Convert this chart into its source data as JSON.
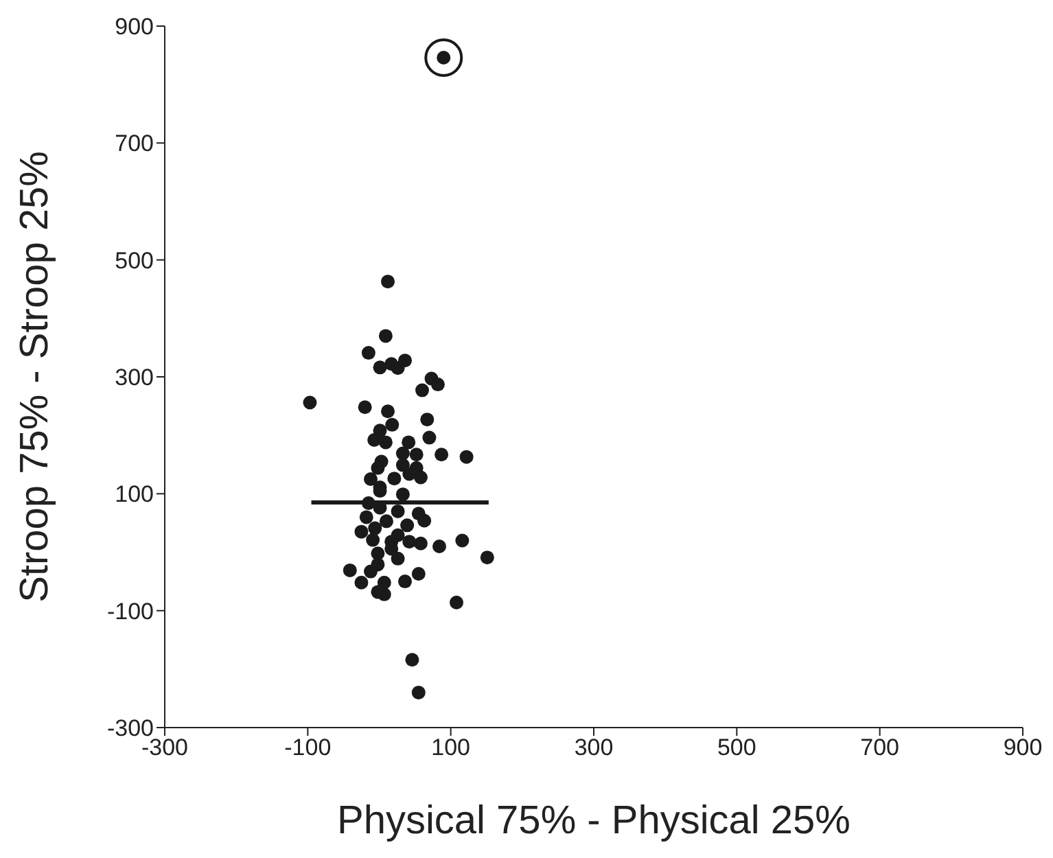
{
  "chart_data": {
    "type": "scatter",
    "xlabel": "Physical 75% - Physical 25%",
    "ylabel": "Stroop 75%  - Stroop 25%",
    "xlim": [
      -300,
      900
    ],
    "xticks": [
      -300,
      -100,
      100,
      300,
      500,
      700,
      900
    ],
    "ylim": [
      -300,
      900
    ],
    "yticks": [
      -300,
      -100,
      100,
      300,
      500,
      700,
      900
    ],
    "marker": "circle",
    "series": [
      {
        "color": "#1a1a1a",
        "x": [
          90,
          12,
          9,
          -15,
          1,
          17,
          26,
          36,
          73,
          82,
          60,
          -97,
          -20,
          12,
          67,
          18,
          1,
          -7,
          9,
          70,
          41,
          33,
          52,
          87,
          122,
          3,
          -2,
          33,
          52,
          -12,
          21,
          42,
          58,
          1,
          1,
          33,
          -15,
          1,
          26,
          -18,
          10,
          55,
          63,
          39,
          -6,
          -25,
          26,
          -9,
          17,
          42,
          58,
          84,
          116,
          151,
          -2,
          17,
          26,
          -2,
          -41,
          -12,
          55,
          36,
          -25,
          7,
          -2,
          7,
          108,
          46,
          55
        ],
        "values": [
          846,
          463,
          370,
          341,
          316,
          322,
          315,
          328,
          297,
          287,
          277,
          256,
          248,
          241,
          227,
          218,
          208,
          192,
          188,
          196,
          188,
          169,
          167,
          167,
          163,
          155,
          144,
          149,
          144,
          125,
          126,
          134,
          128,
          111,
          105,
          99,
          84,
          76,
          70,
          60,
          53,
          66,
          54,
          46,
          41,
          35,
          29,
          21,
          18,
          18,
          15,
          10,
          20,
          -9,
          -2,
          6,
          -11,
          -21,
          -31,
          -33,
          -37,
          -50,
          -52,
          -52,
          -68,
          -72,
          -86,
          -184,
          -240
        ]
      },
      {
        "type": "line",
        "color": "#1a1a1a",
        "line_style": "solid",
        "marker": "none",
        "x": [
          -95,
          153
        ],
        "values": [
          85,
          85
        ]
      }
    ]
  }
}
